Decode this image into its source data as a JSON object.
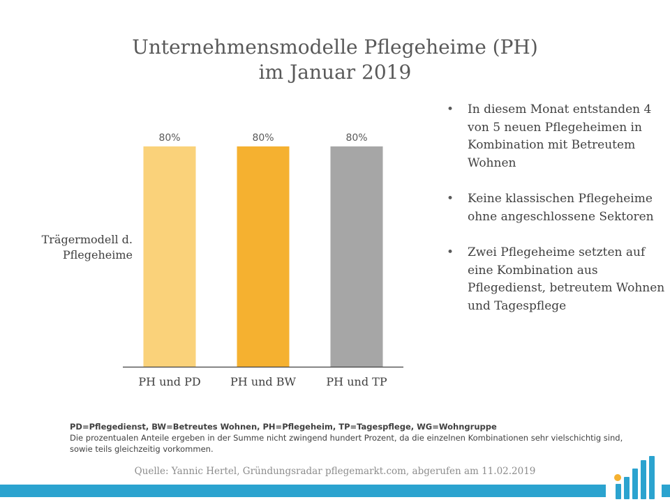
{
  "chart_data": {
    "type": "bar",
    "title": "Unternehmensmodelle Pflegeheime (PH) im Januar 2019",
    "title_lines": [
      "Unternehmensmodelle Pflegeheime (PH)",
      "im Januar 2019"
    ],
    "ylabel": "Trägermodell d. Pflegeheime",
    "ylabel_lines": [
      "Trägermodell d.",
      "Pflegeheime"
    ],
    "categories": [
      "PH und PD",
      "PH und BW",
      "PH und TP"
    ],
    "values": [
      80,
      80,
      80
    ],
    "data_labels": [
      "80%",
      "80%",
      "80%"
    ],
    "ylim": [
      0,
      100
    ],
    "grid": false,
    "bar_colors": [
      "#fad27a",
      "#f5b130",
      "#a6a6a6"
    ],
    "axis_color": "#404040"
  },
  "bullets": [
    "In diesem Monat entstanden 4 von 5 neuen Pflegeheimen in Kombination mit Betreutem Wohnen",
    "Keine klassischen Pflegeheime ohne angeschlossene Sektoren",
    "Zwei Pflegeheime setzten auf eine Kombination aus Pflegedienst, betreutem Wohnen und Tagespflege"
  ],
  "notes": {
    "abbreviations": "PD=Pflegedienst, BW=Betreutes Wohnen, PH=Pflegeheim, TP=Tagespflege, WG=Wohngruppe",
    "disclaimer": "Die prozentualen Anteile ergeben in der Summe nicht zwingend hundert Prozent, da die einzelnen Kombinationen sehr vielschichtig sind, sowie teils gleichzeitig vorkommen."
  },
  "source": "Quelle: Yannic Hertel, Gründungsradar pflegemarkt.com, abgerufen am 11.02.2019",
  "colors": {
    "footer_bar": "#2ba3cf",
    "logo_blue": "#2ba3cf",
    "logo_yellow": "#f5b130"
  },
  "icons": [
    "bar-chart-logo-icon"
  ]
}
